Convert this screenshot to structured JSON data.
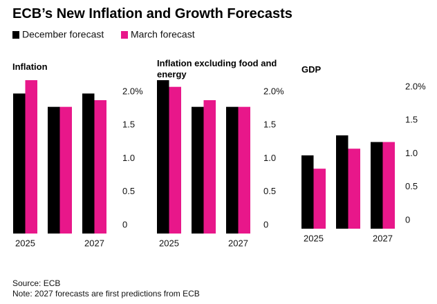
{
  "title": "ECB’s New Inflation and Growth Forecasts",
  "source": "Source: ECB",
  "note": "Note: 2027 forecasts are first predictions from ECB",
  "chart_data": [
    {
      "type": "bar",
      "title": "Inflation",
      "categories": [
        "2025",
        null,
        "2027"
      ],
      "series": [
        {
          "name": "December forecast",
          "color": "#000000",
          "values": [
            2.1,
            1.9,
            2.1
          ]
        },
        {
          "name": "March forecast",
          "color": "#e8178a",
          "values": [
            2.3,
            1.9,
            2.0
          ]
        }
      ],
      "ylim": [
        0,
        2.4
      ],
      "yticks": [
        0,
        0.5,
        {
          "value": 1,
          "label": "1.0"
        },
        1.5,
        {
          "value": 2,
          "label": "2.0%"
        }
      ]
    },
    {
      "type": "bar",
      "title": "Inflation excluding food and energy",
      "categories": [
        "2025",
        null,
        "2027"
      ],
      "series": [
        {
          "name": "December forecast",
          "color": "#000000",
          "values": [
            2.3,
            1.9,
            1.9
          ]
        },
        {
          "name": "March forecast",
          "color": "#e8178a",
          "values": [
            2.2,
            2.0,
            1.9
          ]
        }
      ],
      "ylim": [
        0,
        2.4
      ],
      "yticks": [
        0,
        0.5,
        {
          "value": 1,
          "label": "1.0"
        },
        1.5,
        {
          "value": 2,
          "label": "2.0%"
        }
      ]
    },
    {
      "type": "bar",
      "title": "GDP",
      "categories": [
        "2025",
        null,
        "2027"
      ],
      "series": [
        {
          "name": "December forecast",
          "color": "#000000",
          "values": [
            1.1,
            1.4,
            1.3
          ]
        },
        {
          "name": "March forecast",
          "color": "#e8178a",
          "values": [
            0.9,
            1.2,
            1.3
          ]
        }
      ],
      "ylim": [
        0,
        2.4
      ],
      "yticks": [
        0,
        0.5,
        {
          "value": 1,
          "label": "1.0"
        },
        1.5,
        {
          "value": 2,
          "label": "2.0%"
        }
      ]
    }
  ]
}
